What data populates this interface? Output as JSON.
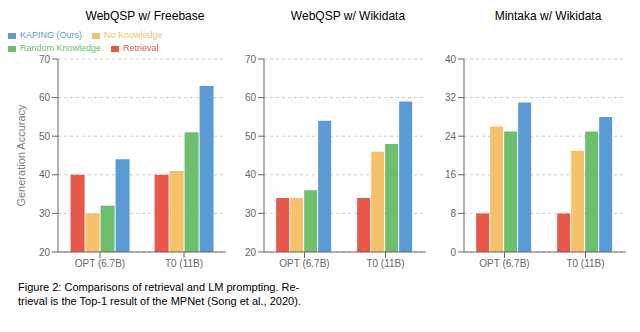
{
  "chart_data": [
    {
      "type": "bar",
      "title": "WebQSP w/ Freebase",
      "ylabel": "Generation Accuracy",
      "categories": [
        "OPT (6.7B)",
        "T0 (11B)"
      ],
      "series": [
        {
          "name": "Retrieval",
          "color": "#e8574a",
          "values": [
            40,
            40
          ]
        },
        {
          "name": "No Knowledge",
          "color": "#f5c26b",
          "values": [
            30,
            41
          ]
        },
        {
          "name": "Random Knowledge",
          "color": "#6dbf6d",
          "values": [
            32,
            51
          ]
        },
        {
          "name": "KAPING (Ours)",
          "color": "#5b9bd5",
          "values": [
            44,
            63
          ]
        }
      ],
      "ylim": [
        20,
        70
      ],
      "yticks": [
        20,
        30,
        40,
        50,
        60,
        70
      ],
      "grid": true,
      "legend": "upper left",
      "annotations": [
        "Figure 2: Comparisons of retrieval and LM prompting. Re-",
        "trieval is the Top-1 result of the MPNet (Song et al., 2020)."
      ]
    },
    {
      "type": "bar",
      "title": "WebQSP w/ Wikidata",
      "categories": [
        "OPT (6.7B)",
        "T0 (11B)"
      ],
      "series": [
        {
          "name": "Retrieval",
          "color": "#e8574a",
          "values": [
            34,
            34
          ]
        },
        {
          "name": "No Knowledge",
          "color": "#f5c26b",
          "values": [
            34,
            46
          ]
        },
        {
          "name": "Random Knowledge",
          "color": "#6dbf6d",
          "values": [
            36,
            48
          ]
        },
        {
          "name": "KAPING (Ours)",
          "color": "#5b9bd5",
          "values": [
            54,
            59
          ]
        }
      ],
      "ylim": [
        20,
        70
      ],
      "yticks": [
        20,
        30,
        40,
        50,
        60,
        70
      ],
      "grid": true
    },
    {
      "type": "bar",
      "title": "Mintaka w/ Wikidata",
      "categories": [
        "OPT (6.7B)",
        "T0 (11B)"
      ],
      "series": [
        {
          "name": "Retrieval",
          "color": "#e8574a",
          "values": [
            8,
            8
          ]
        },
        {
          "name": "No Knowledge",
          "color": "#f5c26b",
          "values": [
            26,
            21
          ]
        },
        {
          "name": "Random Knowledge",
          "color": "#6dbf6d",
          "values": [
            25,
            25
          ]
        },
        {
          "name": "KAPING (Ours)",
          "color": "#5b9bd5",
          "values": [
            31,
            28
          ]
        }
      ],
      "ylim": [
        0,
        40
      ],
      "yticks": [
        0,
        8,
        16,
        24,
        32,
        40
      ],
      "grid": true
    }
  ]
}
